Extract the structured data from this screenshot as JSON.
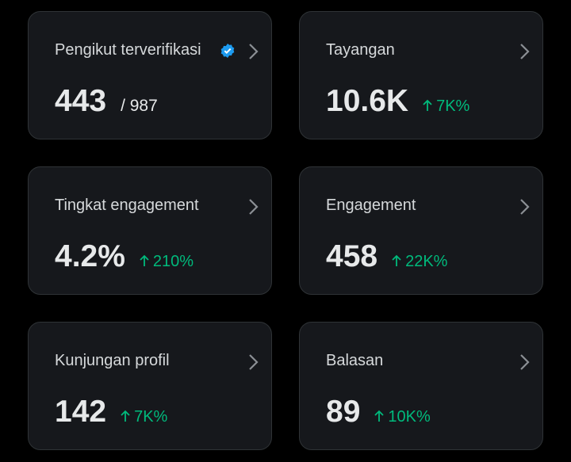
{
  "cards": [
    {
      "label": "Pengikut terverifikasi",
      "value": "443",
      "sub": "/ 987"
    },
    {
      "label": "Tayangan",
      "value": "10.6K",
      "change": "7K%"
    },
    {
      "label": "Tingkat engagement",
      "value": "4.2%",
      "change": "210%"
    },
    {
      "label": "Engagement",
      "value": "458",
      "change": "22K%"
    },
    {
      "label": "Kunjungan profil",
      "value": "142",
      "change": "7K%"
    },
    {
      "label": "Balasan",
      "value": "89",
      "change": "10K%"
    }
  ]
}
